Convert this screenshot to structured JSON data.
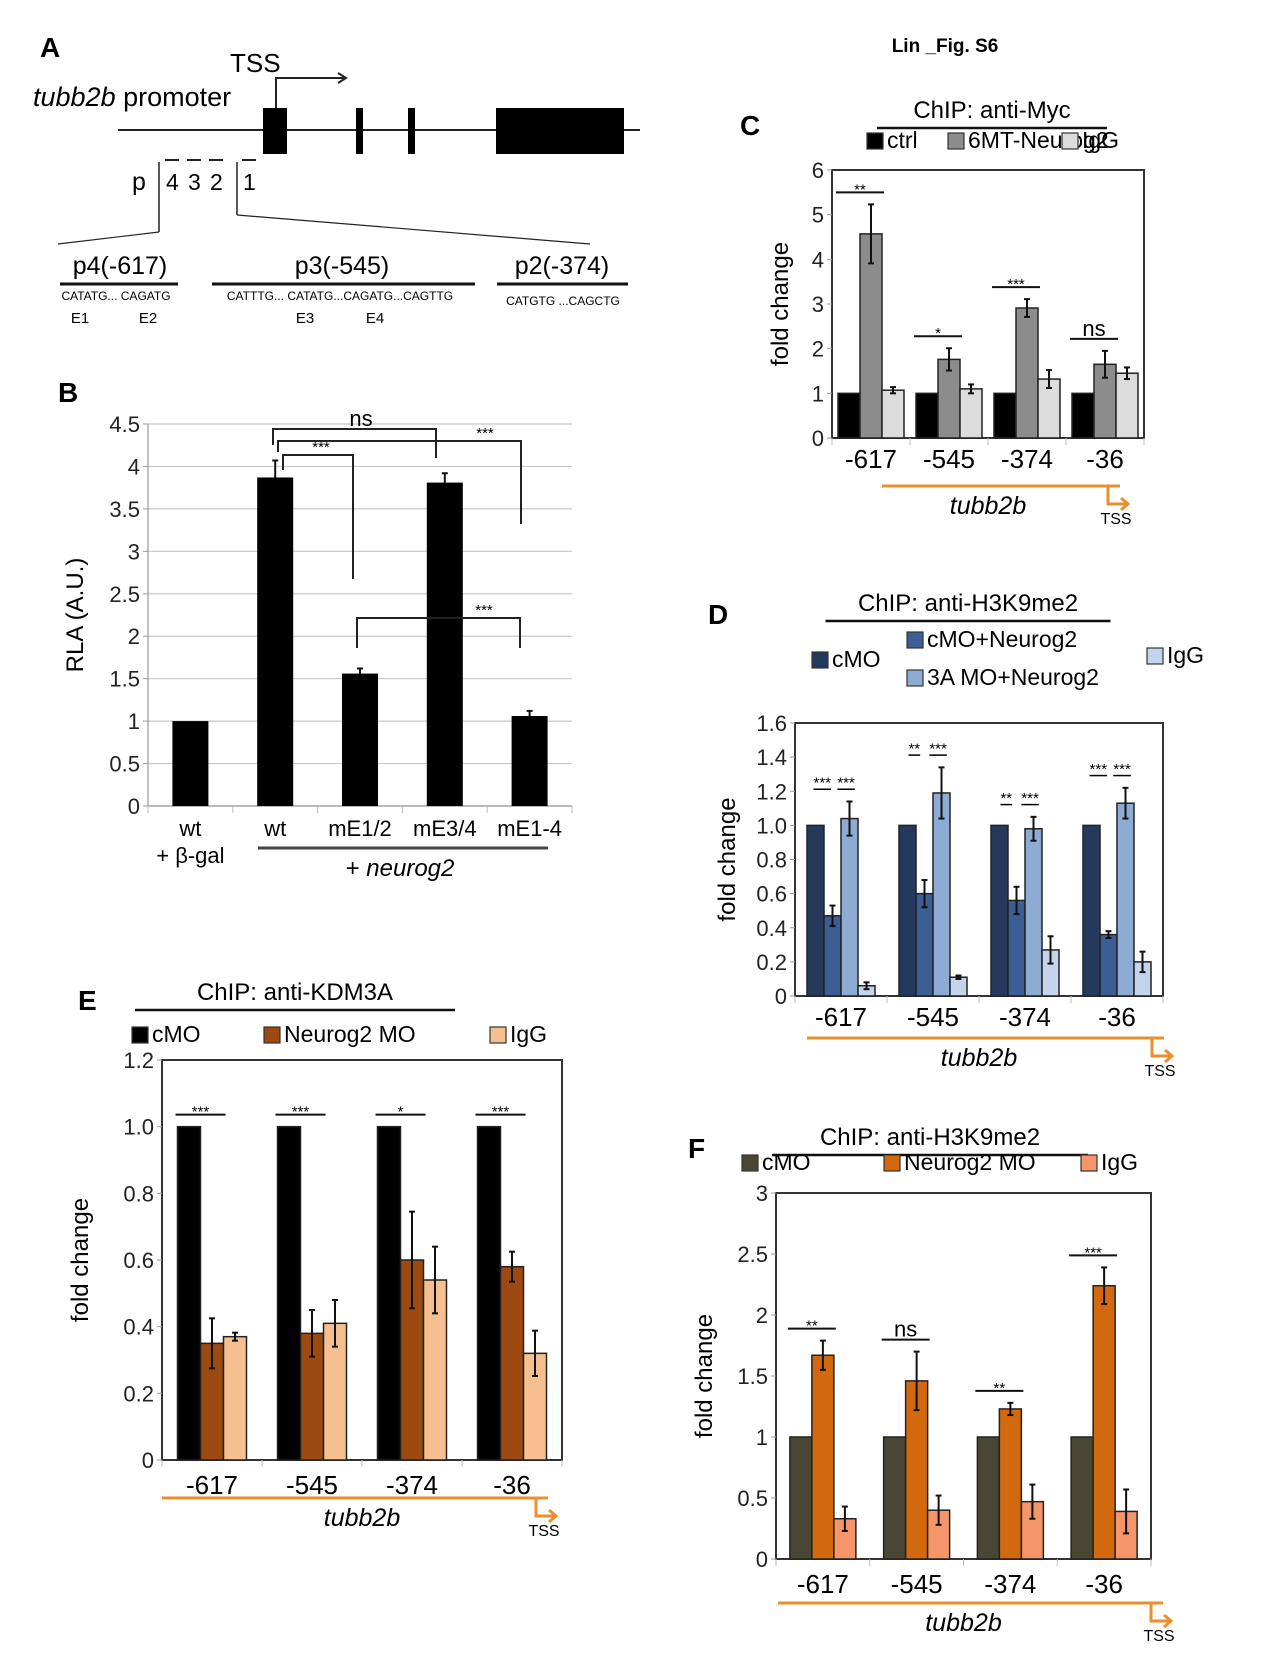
{
  "figure_title": "Lin _Fig. S6",
  "panelA": {
    "label": "A",
    "gene_label_italic": "tubb2b",
    "gene_label_rest": " promoter",
    "tss": "TSS",
    "primer_prefix": "p",
    "primers": [
      "4",
      "3",
      "2",
      "1"
    ],
    "regions": [
      {
        "name": "p4(-617)",
        "seq": "CATATG... CAGATG",
        "eboxes": [
          "E1",
          "E2"
        ]
      },
      {
        "name": "p3(-545)",
        "seq": "CATTTG... CATATG...CAGATG...CAGTTG",
        "eboxes": [
          "E3",
          "E4"
        ]
      },
      {
        "name": "p2(-374)",
        "seq": "CATGTG ...CAGCTG",
        "eboxes": []
      }
    ]
  },
  "chart_data": [
    {
      "panel": "B",
      "type": "bar",
      "title": "",
      "ylabel": "RLA (A.U.)",
      "xlabel": "",
      "ylim": [
        0,
        4.5
      ],
      "yticks": [
        "0",
        "0.5",
        "1",
        "1.5",
        "2",
        "2.5",
        "3",
        "3.5",
        "4",
        "4.5"
      ],
      "grid": true,
      "categories": [
        "wt",
        "wt",
        "mE1/2",
        "mE3/4",
        "mE1-4"
      ],
      "category_sublabels": [
        "+ β-gal",
        "",
        "",
        "",
        ""
      ],
      "group_label_prefix": "+ ",
      "group_label_italic": "neurog2",
      "values": [
        1.0,
        3.87,
        1.56,
        3.81,
        1.06
      ],
      "errors": [
        0,
        0.2,
        0.06,
        0.11,
        0.06
      ],
      "color": "#000000",
      "significance": [
        {
          "from": "wt",
          "to": "mE3/4",
          "label": "ns"
        },
        {
          "from": "wt",
          "to": "mE1-4",
          "label": "***"
        },
        {
          "from": "wt",
          "to": "mE1/2",
          "label": "***"
        },
        {
          "from": "mE1/2",
          "to": "mE1-4",
          "label": "***"
        }
      ]
    },
    {
      "panel": "C",
      "type": "bar",
      "title": "ChIP: anti-Myc",
      "ylabel": "fold change",
      "xlabel": "tubb2b",
      "tss": "TSS",
      "ylim": [
        0,
        6
      ],
      "yticks": [
        "0",
        "1",
        "2",
        "3",
        "4",
        "5",
        "6"
      ],
      "grid": false,
      "legend_position": "top",
      "categories": [
        "-617",
        "-545",
        "-374",
        "-36"
      ],
      "series": [
        {
          "name": "ctrl",
          "color": "#000000",
          "values": [
            1,
            1,
            1,
            1
          ],
          "errors": [
            0,
            0,
            0,
            0
          ]
        },
        {
          "name": "6MT-Neurog2",
          "color": "#8c8c8c",
          "values": [
            4.57,
            1.76,
            2.91,
            1.65
          ],
          "errors": [
            0.66,
            0.25,
            0.2,
            0.3
          ]
        },
        {
          "name": "IgG",
          "color": "#dcdcdc",
          "values": [
            1.07,
            1.1,
            1.32,
            1.45
          ],
          "errors": [
            0.07,
            0.1,
            0.2,
            0.13
          ]
        }
      ],
      "significance": [
        "**",
        "*",
        "***",
        "ns"
      ]
    },
    {
      "panel": "D",
      "type": "bar",
      "title": "ChIP: anti-H3K9me2",
      "ylabel": "fold change",
      "xlabel": "tubb2b",
      "tss": "TSS",
      "ylim": [
        0,
        1.6
      ],
      "yticks": [
        "0",
        "0.2",
        "0.4",
        "0.6",
        "0.8",
        "1.0",
        "1.2",
        "1.4",
        "1.6"
      ],
      "grid": false,
      "legend_position": "top",
      "categories": [
        "-617",
        "-545",
        "-374",
        "-36"
      ],
      "series": [
        {
          "name": "cMO",
          "color": "#25395c",
          "values": [
            1.0,
            1.0,
            1.0,
            1.0
          ],
          "errors": [
            0,
            0,
            0,
            0
          ]
        },
        {
          "name": "cMO+Neurog2",
          "color": "#3b5f95",
          "values": [
            0.47,
            0.6,
            0.56,
            0.36
          ],
          "errors": [
            0.06,
            0.08,
            0.08,
            0.02
          ]
        },
        {
          "name": "3A MO+Neurog2",
          "color": "#8eabd3",
          "values": [
            1.04,
            1.19,
            0.98,
            1.13
          ],
          "errors": [
            0.1,
            0.15,
            0.07,
            0.09
          ]
        },
        {
          "name": "IgG",
          "color": "#c4d4ea",
          "values": [
            0.06,
            0.11,
            0.27,
            0.2
          ],
          "errors": [
            0.02,
            0.01,
            0.08,
            0.06
          ]
        }
      ],
      "significance": [
        [
          "***",
          "***"
        ],
        [
          "**",
          "***"
        ],
        [
          "**",
          "***"
        ],
        [
          "***",
          "***"
        ]
      ]
    },
    {
      "panel": "E",
      "type": "bar",
      "title": "ChIP: anti-KDM3A",
      "ylabel": "fold change",
      "xlabel": "tubb2b",
      "tss": "TSS",
      "ylim": [
        0,
        1.2
      ],
      "yticks": [
        "0",
        "0.2",
        "0.4",
        "0.6",
        "0.8",
        "1.0",
        "1.2"
      ],
      "grid": false,
      "legend_position": "top",
      "categories": [
        "-617",
        "-545",
        "-374",
        "-36"
      ],
      "series": [
        {
          "name": "cMO",
          "color": "#000000",
          "values": [
            1.0,
            1.0,
            1.0,
            1.0
          ],
          "errors": [
            0,
            0,
            0,
            0
          ]
        },
        {
          "name": "Neurog2 MO",
          "color": "#9c4a12",
          "values": [
            0.35,
            0.38,
            0.6,
            0.58
          ],
          "errors": [
            0.075,
            0.07,
            0.145,
            0.045
          ]
        },
        {
          "name": "IgG",
          "color": "#f6bf8f",
          "values": [
            0.37,
            0.41,
            0.54,
            0.32
          ],
          "errors": [
            0.012,
            0.07,
            0.1,
            0.068
          ]
        }
      ],
      "significance": [
        "***",
        "***",
        "*",
        "***"
      ]
    },
    {
      "panel": "F",
      "type": "bar",
      "title": "ChIP: anti-H3K9me2",
      "ylabel": "fold change",
      "xlabel": "tubb2b",
      "tss": "TSS",
      "ylim": [
        0,
        3
      ],
      "yticks": [
        "0",
        "0.5",
        "1",
        "1.5",
        "2",
        "2.5",
        "3"
      ],
      "grid": false,
      "legend_position": "top",
      "categories": [
        "-617",
        "-545",
        "-374",
        "-36"
      ],
      "series": [
        {
          "name": "cMO",
          "color": "#4a4634",
          "values": [
            1.0,
            1.0,
            1.0,
            1.0
          ],
          "errors": [
            0,
            0,
            0,
            0
          ]
        },
        {
          "name": "Neurog2 MO",
          "color": "#d2690f",
          "values": [
            1.67,
            1.46,
            1.23,
            2.24
          ],
          "errors": [
            0.12,
            0.24,
            0.05,
            0.15
          ]
        },
        {
          "name": "IgG",
          "color": "#f4956a",
          "values": [
            0.33,
            0.4,
            0.47,
            0.39
          ],
          "errors": [
            0.1,
            0.12,
            0.14,
            0.18
          ]
        }
      ],
      "significance": [
        "**",
        "ns",
        "**",
        "***"
      ]
    }
  ],
  "colors": {
    "tss_arrow": "#e8902e"
  }
}
